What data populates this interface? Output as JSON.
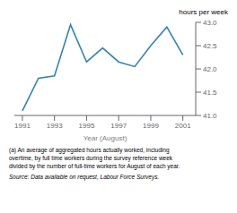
{
  "chart_data": {
    "type": "line",
    "x": [
      1991,
      1992,
      1993,
      1994,
      1995,
      1996,
      1997,
      1998,
      1999,
      2000,
      2001
    ],
    "values": [
      41.1,
      41.8,
      41.85,
      42.95,
      42.15,
      42.45,
      42.15,
      42.05,
      42.5,
      42.9,
      42.3
    ],
    "xlim": [
      1990.5,
      2001.8
    ],
    "xticks": [
      1991,
      1993,
      1995,
      1997,
      1999,
      2001
    ],
    "ylim": [
      41.0,
      43.0
    ],
    "yticks": [
      {
        "value": 41.0,
        "label": "41.0"
      },
      {
        "value": 41.5,
        "label": "41.5"
      },
      {
        "value": 42.0,
        "label": "42.0"
      },
      {
        "value": 42.5,
        "label": "42.5"
      },
      {
        "value": 43.0,
        "label": "43.0"
      }
    ],
    "xlabel": "Year (August)",
    "ylabel": "hours per week",
    "annotations": [
      "(a) An average of aggregated hours actually worked, including",
      "overtime, by full time workers during the survey reference week",
      "divided by the number of full-time workers for August of each year."
    ],
    "source": "Source: Data available on request, Labour Force Surveys.",
    "grid": false
  }
}
